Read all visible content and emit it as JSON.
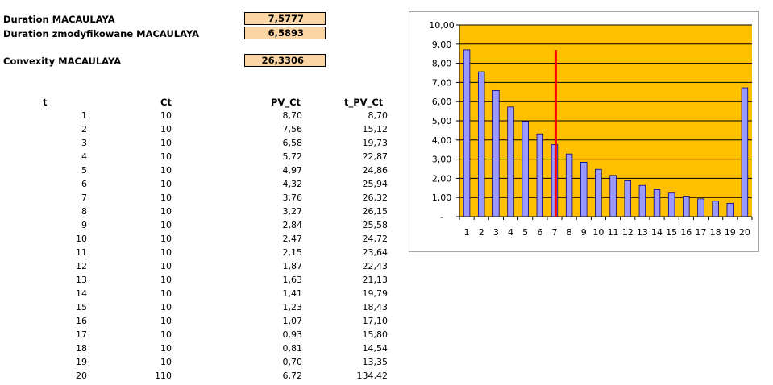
{
  "summary": {
    "duration_label": "Duration MACAULAYA",
    "duration_value": "7,5777",
    "modified_label": "Duration zmodyfikowane MACAULAYA",
    "modified_value": "6,5893",
    "convexity_label": "Convexity MACAULAYA",
    "convexity_value": "26,3306"
  },
  "table": {
    "headers": [
      "t",
      "Ct",
      "PV_Ct",
      "t_PV_Ct"
    ],
    "rows": [
      [
        "1",
        "10",
        "8,70",
        "8,70"
      ],
      [
        "2",
        "10",
        "7,56",
        "15,12"
      ],
      [
        "3",
        "10",
        "6,58",
        "19,73"
      ],
      [
        "4",
        "10",
        "5,72",
        "22,87"
      ],
      [
        "5",
        "10",
        "4,97",
        "24,86"
      ],
      [
        "6",
        "10",
        "4,32",
        "25,94"
      ],
      [
        "7",
        "10",
        "3,76",
        "26,32"
      ],
      [
        "8",
        "10",
        "3,27",
        "26,15"
      ],
      [
        "9",
        "10",
        "2,84",
        "25,58"
      ],
      [
        "10",
        "10",
        "2,47",
        "24,72"
      ],
      [
        "11",
        "10",
        "2,15",
        "23,64"
      ],
      [
        "12",
        "10",
        "1,87",
        "22,43"
      ],
      [
        "13",
        "10",
        "1,63",
        "21,13"
      ],
      [
        "14",
        "10",
        "1,41",
        "19,79"
      ],
      [
        "15",
        "10",
        "1,23",
        "18,43"
      ],
      [
        "16",
        "10",
        "1,07",
        "17,10"
      ],
      [
        "17",
        "10",
        "0,93",
        "15,80"
      ],
      [
        "18",
        "10",
        "0,81",
        "14,54"
      ],
      [
        "19",
        "10",
        "0,70",
        "13,35"
      ],
      [
        "20",
        "110",
        "6,72",
        "134,42"
      ]
    ]
  },
  "chart_data": {
    "type": "bar",
    "categories": [
      "1",
      "2",
      "3",
      "4",
      "5",
      "6",
      "7",
      "8",
      "9",
      "10",
      "11",
      "12",
      "13",
      "14",
      "15",
      "16",
      "17",
      "18",
      "19",
      "20"
    ],
    "series": [
      {
        "values": [
          8.7,
          7.56,
          6.58,
          5.72,
          4.97,
          4.32,
          3.76,
          3.27,
          2.84,
          2.47,
          2.15,
          1.87,
          1.63,
          1.41,
          1.23,
          1.07,
          0.93,
          0.81,
          0.7,
          6.72
        ]
      }
    ],
    "marker_line": {
      "x": 7.5777,
      "color": "#ff0000"
    },
    "ylim": [
      0,
      10
    ],
    "yticks": [
      "-",
      "1,00",
      "2,00",
      "3,00",
      "4,00",
      "5,00",
      "6,00",
      "7,00",
      "8,00",
      "9,00",
      "10,00"
    ],
    "ytick_values": [
      0,
      1,
      2,
      3,
      4,
      5,
      6,
      7,
      8,
      9,
      10
    ],
    "plot_background": "#ffc000",
    "bar_color": "#9999ff",
    "bar_edge": "#000080",
    "grid": true
  }
}
